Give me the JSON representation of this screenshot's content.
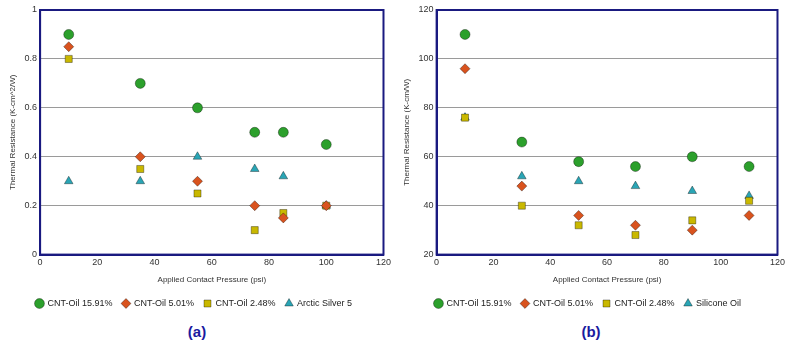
{
  "chart_data": [
    {
      "type": "scatter",
      "caption": "(a)",
      "x_label": "Applied Contact Pressure (psi)",
      "y_label": "Thermal Resistance (K-cm^2/W)",
      "x": [
        10,
        35,
        55,
        75,
        85,
        100
      ],
      "xlim": [
        0,
        120
      ],
      "xticks": [
        0,
        20,
        40,
        60,
        80,
        100,
        120
      ],
      "ylim": [
        0,
        1
      ],
      "yticks": [
        0,
        0.2,
        0.4,
        0.6,
        0.8,
        1
      ],
      "grid": true,
      "legend": "bottom",
      "series": [
        {
          "name": "CNT-Oil 15.91%",
          "color": "#2ca02c",
          "marker": "circle",
          "values": [
            0.9,
            0.7,
            0.6,
            0.5,
            0.5,
            0.45
          ]
        },
        {
          "name": "CNT-Oil 5.01%",
          "color": "#d9531e",
          "marker": "diamond",
          "values": [
            0.85,
            0.4,
            0.3,
            0.2,
            0.15,
            0.2
          ]
        },
        {
          "name": "CNT-Oil 2.48%",
          "color": "#c9b800",
          "marker": "square",
          "values": [
            0.8,
            0.35,
            0.25,
            0.1,
            0.17,
            0.2
          ]
        },
        {
          "name": "Arctic Silver 5",
          "color": "#2aa5b5",
          "marker": "triangle",
          "values": [
            0.3,
            0.3,
            0.4,
            0.35,
            0.32,
            0.2
          ]
        }
      ]
    },
    {
      "type": "scatter",
      "caption": "(b)",
      "x_label": "Applied Contact Pressure (psi)",
      "y_label": "Thermal Resistance (K-cm/W)",
      "x": [
        10,
        30,
        50,
        70,
        90,
        110
      ],
      "xlim": [
        0,
        120
      ],
      "xticks": [
        0,
        20,
        40,
        60,
        80,
        100,
        120
      ],
      "ylim": [
        20,
        120
      ],
      "yticks": [
        20,
        40,
        60,
        80,
        100,
        120
      ],
      "grid": true,
      "legend": "bottom",
      "series": [
        {
          "name": "CNT-Oil 15.91%",
          "color": "#2ca02c",
          "marker": "circle",
          "values": [
            110,
            66,
            58,
            56,
            60,
            56
          ]
        },
        {
          "name": "CNT-Oil 5.01%",
          "color": "#d9531e",
          "marker": "diamond",
          "values": [
            96,
            48,
            36,
            32,
            30,
            36
          ]
        },
        {
          "name": "CNT-Oil 2.48%",
          "color": "#c9b800",
          "marker": "square",
          "values": [
            76,
            40,
            32,
            28,
            34,
            42
          ]
        },
        {
          "name": "Silicone Oil",
          "color": "#2aa5b5",
          "marker": "triangle",
          "values": [
            76,
            52,
            50,
            48,
            46,
            44
          ]
        }
      ]
    }
  ]
}
